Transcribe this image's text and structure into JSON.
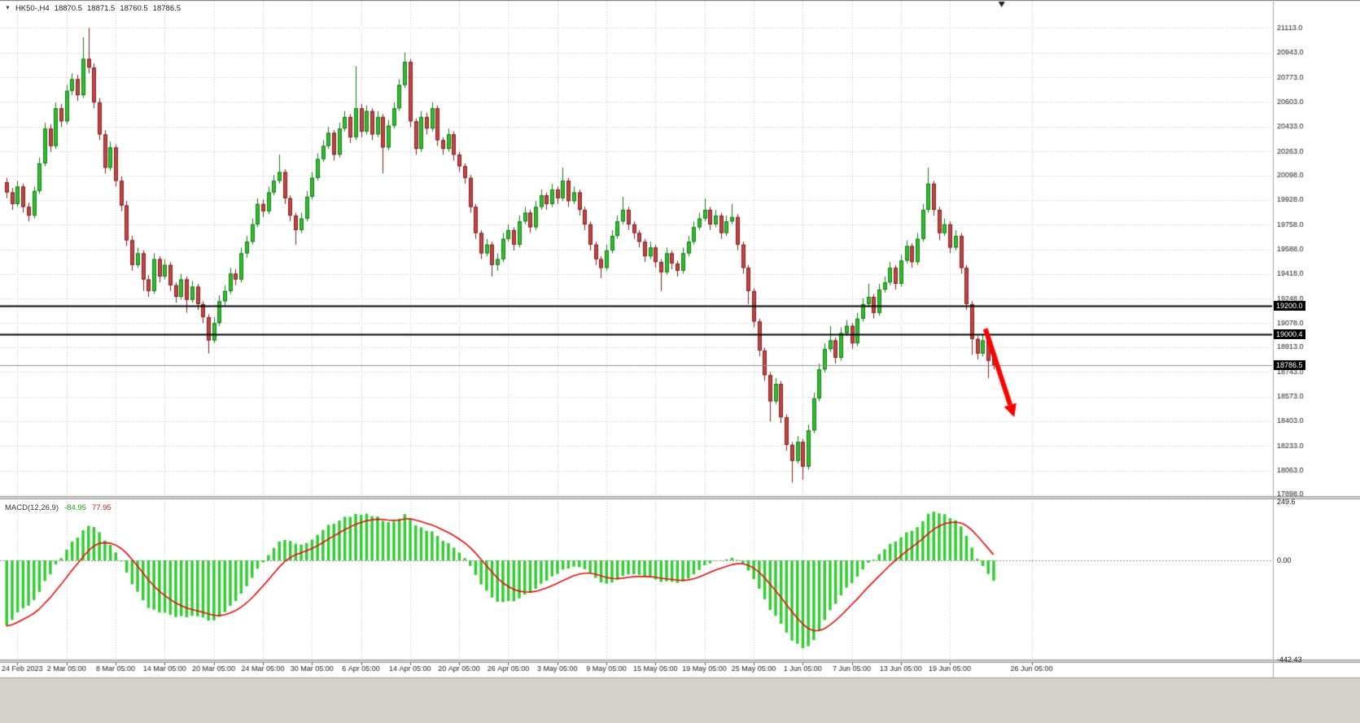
{
  "header": {
    "symbol_timeframe": "HK50-,H4",
    "open": "18870.5",
    "high": "18871.5",
    "low": "18760.5",
    "close": "18786.5"
  },
  "chart_data": {
    "type": "candlestick",
    "symbol": "HK50",
    "timeframe": "H4",
    "price_axis": {
      "ticks": [
        "21113.0",
        "20943.0",
        "20773.0",
        "20603.0",
        "20433.0",
        "20263.0",
        "20098.0",
        "19928.0",
        "19758.0",
        "19588.0",
        "19418.0",
        "19248.0",
        "19078.0",
        "18913.0",
        "18743.0",
        "18573.0",
        "18403.0",
        "18233.0",
        "18063.0",
        "17898.0"
      ]
    },
    "time_axis": {
      "labels": [
        {
          "t": "24 Feb 2023",
          "i": 2
        },
        {
          "t": "2 Mar 05:00",
          "i": 11
        },
        {
          "t": "8 Mar 05:00",
          "i": 20
        },
        {
          "t": "14 Mar 05:00",
          "i": 29
        },
        {
          "t": "20 Mar 05:00",
          "i": 38
        },
        {
          "t": "24 Mar 05:00",
          "i": 47
        },
        {
          "t": "30 Mar 05:00",
          "i": 56
        },
        {
          "t": "6 Apr 05:00",
          "i": 65
        },
        {
          "t": "14 Apr 05:00",
          "i": 74
        },
        {
          "t": "20 Apr 05:00",
          "i": 83
        },
        {
          "t": "26 Apr 05:00",
          "i": 92
        },
        {
          "t": "3 May 05:00",
          "i": 101
        },
        {
          "t": "9 May 05:00",
          "i": 110
        },
        {
          "t": "15 May 05:00",
          "i": 119
        },
        {
          "t": "19 May 05:00",
          "i": 128
        },
        {
          "t": "25 May 05:00",
          "i": 137
        },
        {
          "t": "1 Jun 05:00",
          "i": 146
        },
        {
          "t": "7 Jun 05:00",
          "i": 155
        },
        {
          "t": "13 Jun 05:00",
          "i": 164
        },
        {
          "t": "19 Jun 05:00",
          "i": 173
        },
        {
          "t": "26 Jun 05:00",
          "i": 188
        }
      ]
    },
    "levels": [
      {
        "label": "19200.0",
        "value": 19200.0,
        "type": "hline"
      },
      {
        "label": "19000.4",
        "value": 19000.4,
        "type": "hline"
      },
      {
        "label": "18786.5",
        "value": 18786.5,
        "type": "last"
      }
    ],
    "annotations": {
      "arrow": {
        "from": {
          "i": 179.5,
          "price": 19040
        },
        "to": {
          "i": 184.8,
          "price": 18430
        },
        "color": "#FF0000"
      }
    },
    "macd": {
      "label": "MACD(12,26,9)",
      "main_value": "-84.95",
      "signal_value": "77.95",
      "axis": {
        "max": "249.6",
        "zero": "0.00",
        "min": "-442.43"
      },
      "params": {
        "fast": 12,
        "slow": 26,
        "signal": 9
      }
    },
    "colors": {
      "bull": "#2FBE2F",
      "bull_edge": "#157915",
      "bear": "#C04545",
      "bear_edge": "#7E2020",
      "grid": "#c6c6c6",
      "hline": "#000000",
      "last_price_line": "#909090",
      "histogram": "#33CC33",
      "signal": "#E01010",
      "arrow": "#FF0000",
      "axis_text": "#1a1a1a"
    },
    "candles": [
      [
        20050,
        20080,
        19940,
        19980
      ],
      [
        19980,
        20010,
        19860,
        19900
      ],
      [
        19900,
        20060,
        19880,
        20020
      ],
      [
        20020,
        20040,
        19840,
        19880
      ],
      [
        19880,
        19910,
        19780,
        19820
      ],
      [
        19820,
        20020,
        19800,
        19990
      ],
      [
        19990,
        20220,
        19970,
        20180
      ],
      [
        20180,
        20460,
        20160,
        20420
      ],
      [
        20420,
        20450,
        20260,
        20300
      ],
      [
        20300,
        20600,
        20280,
        20560
      ],
      [
        20560,
        20590,
        20430,
        20470
      ],
      [
        20470,
        20720,
        20450,
        20680
      ],
      [
        20680,
        20800,
        20650,
        20760
      ],
      [
        20760,
        20790,
        20610,
        20650
      ],
      [
        20650,
        21050,
        20630,
        20900
      ],
      [
        20900,
        21113,
        20800,
        20840
      ],
      [
        20840,
        20870,
        20560,
        20600
      ],
      [
        20600,
        20630,
        20340,
        20380
      ],
      [
        20380,
        20410,
        20110,
        20150
      ],
      [
        20150,
        20330,
        20130,
        20290
      ],
      [
        20290,
        20310,
        20020,
        20060
      ],
      [
        20060,
        20090,
        19850,
        19890
      ],
      [
        19890,
        19920,
        19610,
        19650
      ],
      [
        19650,
        19680,
        19440,
        19480
      ],
      [
        19480,
        19600,
        19460,
        19560
      ],
      [
        19560,
        19580,
        19300,
        19380
      ],
      [
        19380,
        19410,
        19260,
        19300
      ],
      [
        19300,
        19560,
        19280,
        19520
      ],
      [
        19520,
        19540,
        19360,
        19400
      ],
      [
        19400,
        19520,
        19380,
        19480
      ],
      [
        19480,
        19500,
        19300,
        19340
      ],
      [
        19340,
        19360,
        19220,
        19260
      ],
      [
        19260,
        19420,
        19240,
        19380
      ],
      [
        19380,
        19400,
        19150,
        19240
      ],
      [
        19240,
        19370,
        19220,
        19330
      ],
      [
        19330,
        19350,
        19170,
        19210
      ],
      [
        19210,
        19230,
        19080,
        19120
      ],
      [
        19120,
        19140,
        18870,
        18960
      ],
      [
        18960,
        19120,
        18940,
        19080
      ],
      [
        19080,
        19270,
        19060,
        19230
      ],
      [
        19230,
        19340,
        19200,
        19300
      ],
      [
        19300,
        19460,
        19280,
        19420
      ],
      [
        19420,
        19450,
        19340,
        19380
      ],
      [
        19380,
        19600,
        19360,
        19560
      ],
      [
        19560,
        19680,
        19530,
        19640
      ],
      [
        19640,
        19800,
        19620,
        19760
      ],
      [
        19760,
        19940,
        19740,
        19900
      ],
      [
        19900,
        19930,
        19810,
        19850
      ],
      [
        19850,
        20020,
        19830,
        19980
      ],
      [
        19980,
        20100,
        19960,
        20060
      ],
      [
        20060,
        20240,
        20040,
        20120
      ],
      [
        20120,
        20140,
        19900,
        19940
      ],
      [
        19940,
        19960,
        19780,
        19820
      ],
      [
        19820,
        19840,
        19620,
        19720
      ],
      [
        19720,
        19840,
        19700,
        19800
      ],
      [
        19800,
        19990,
        19780,
        19950
      ],
      [
        19950,
        20120,
        19930,
        20080
      ],
      [
        20080,
        20250,
        20060,
        20210
      ],
      [
        20210,
        20340,
        20190,
        20300
      ],
      [
        20300,
        20430,
        20280,
        20390
      ],
      [
        20390,
        20410,
        20200,
        20240
      ],
      [
        20240,
        20460,
        20220,
        20420
      ],
      [
        20420,
        20540,
        20400,
        20500
      ],
      [
        20500,
        20520,
        20320,
        20360
      ],
      [
        20360,
        20850,
        20340,
        20560
      ],
      [
        20560,
        20590,
        20360,
        20400
      ],
      [
        20400,
        20580,
        20380,
        20540
      ],
      [
        20540,
        20560,
        20340,
        20380
      ],
      [
        20380,
        20540,
        20360,
        20500
      ],
      [
        20500,
        20520,
        20110,
        20290
      ],
      [
        20290,
        20480,
        20270,
        20440
      ],
      [
        20440,
        20600,
        20420,
        20560
      ],
      [
        20560,
        20760,
        20540,
        20720
      ],
      [
        20720,
        20943,
        20700,
        20880
      ],
      [
        20880,
        20900,
        20430,
        20470
      ],
      [
        20470,
        20490,
        20240,
        20280
      ],
      [
        20280,
        20540,
        20260,
        20500
      ],
      [
        20500,
        20530,
        20380,
        20420
      ],
      [
        20420,
        20600,
        20400,
        20560
      ],
      [
        20560,
        20580,
        20300,
        20340
      ],
      [
        20340,
        20360,
        20240,
        20280
      ],
      [
        20280,
        20420,
        20260,
        20380
      ],
      [
        20380,
        20400,
        20200,
        20240
      ],
      [
        20240,
        20260,
        20120,
        20160
      ],
      [
        20160,
        20180,
        20040,
        20080
      ],
      [
        20080,
        20100,
        19840,
        19880
      ],
      [
        19880,
        19900,
        19660,
        19700
      ],
      [
        19700,
        19720,
        19520,
        19560
      ],
      [
        19560,
        19660,
        19540,
        19620
      ],
      [
        19620,
        19640,
        19400,
        19480
      ],
      [
        19480,
        19560,
        19440,
        19520
      ],
      [
        19520,
        19700,
        19500,
        19660
      ],
      [
        19660,
        19760,
        19640,
        19720
      ],
      [
        19720,
        19740,
        19580,
        19620
      ],
      [
        19620,
        19820,
        19600,
        19780
      ],
      [
        19780,
        19880,
        19760,
        19840
      ],
      [
        19840,
        19860,
        19700,
        19740
      ],
      [
        19740,
        19920,
        19720,
        19880
      ],
      [
        19880,
        20000,
        19860,
        19960
      ],
      [
        19960,
        19980,
        19860,
        19900
      ],
      [
        19900,
        20040,
        19880,
        20000
      ],
      [
        20000,
        20020,
        19900,
        19940
      ],
      [
        19940,
        20150,
        19920,
        20060
      ],
      [
        20060,
        20080,
        19880,
        19920
      ],
      [
        19920,
        20020,
        19900,
        19980
      ],
      [
        19980,
        20000,
        19820,
        19860
      ],
      [
        19860,
        19880,
        19720,
        19760
      ],
      [
        19760,
        19780,
        19580,
        19620
      ],
      [
        19620,
        19640,
        19480,
        19520
      ],
      [
        19520,
        19540,
        19390,
        19460
      ],
      [
        19460,
        19620,
        19440,
        19580
      ],
      [
        19580,
        19720,
        19560,
        19680
      ],
      [
        19680,
        19820,
        19660,
        19780
      ],
      [
        19780,
        19950,
        19760,
        19860
      ],
      [
        19860,
        19880,
        19720,
        19760
      ],
      [
        19760,
        19780,
        19660,
        19700
      ],
      [
        19700,
        19720,
        19600,
        19640
      ],
      [
        19640,
        19660,
        19500,
        19540
      ],
      [
        19540,
        19640,
        19520,
        19600
      ],
      [
        19600,
        19620,
        19460,
        19500
      ],
      [
        19500,
        19520,
        19300,
        19430
      ],
      [
        19430,
        19600,
        19410,
        19560
      ],
      [
        19560,
        19580,
        19450,
        19490
      ],
      [
        19490,
        19510,
        19400,
        19440
      ],
      [
        19440,
        19600,
        19420,
        19560
      ],
      [
        19560,
        19680,
        19540,
        19640
      ],
      [
        19640,
        19780,
        19620,
        19740
      ],
      [
        19740,
        19840,
        19720,
        19800
      ],
      [
        19800,
        19940,
        19780,
        19860
      ],
      [
        19860,
        19880,
        19720,
        19760
      ],
      [
        19760,
        19860,
        19740,
        19820
      ],
      [
        19820,
        19840,
        19660,
        19700
      ],
      [
        19700,
        19820,
        19680,
        19780
      ],
      [
        19780,
        19900,
        19760,
        19810
      ],
      [
        19810,
        19830,
        19580,
        19620
      ],
      [
        19620,
        19640,
        19420,
        19460
      ],
      [
        19460,
        19480,
        19210,
        19300
      ],
      [
        19300,
        19320,
        19050,
        19090
      ],
      [
        19090,
        19110,
        18850,
        18890
      ],
      [
        18890,
        18910,
        18680,
        18720
      ],
      [
        18720,
        18740,
        18400,
        18540
      ],
      [
        18540,
        18700,
        18520,
        18660
      ],
      [
        18660,
        18680,
        18390,
        18430
      ],
      [
        18430,
        18450,
        18200,
        18240
      ],
      [
        18240,
        18260,
        17980,
        18130
      ],
      [
        18130,
        18300,
        18110,
        18260
      ],
      [
        18260,
        18280,
        18000,
        18090
      ],
      [
        18090,
        18380,
        18070,
        18340
      ],
      [
        18340,
        18600,
        18320,
        18560
      ],
      [
        18560,
        18800,
        18540,
        18760
      ],
      [
        18760,
        18940,
        18740,
        18900
      ],
      [
        18900,
        19060,
        18880,
        18960
      ],
      [
        18960,
        18980,
        18800,
        18840
      ],
      [
        18840,
        19050,
        18820,
        19010
      ],
      [
        19010,
        19100,
        18990,
        19060
      ],
      [
        19060,
        19080,
        18900,
        18940
      ],
      [
        18940,
        19150,
        18920,
        19110
      ],
      [
        19110,
        19250,
        19090,
        19210
      ],
      [
        19210,
        19350,
        19190,
        19260
      ],
      [
        19260,
        19280,
        19110,
        19150
      ],
      [
        19150,
        19350,
        19130,
        19310
      ],
      [
        19310,
        19400,
        19290,
        19360
      ],
      [
        19360,
        19500,
        19340,
        19460
      ],
      [
        19460,
        19480,
        19310,
        19350
      ],
      [
        19350,
        19550,
        19330,
        19510
      ],
      [
        19510,
        19650,
        19490,
        19610
      ],
      [
        19610,
        19630,
        19460,
        19500
      ],
      [
        19500,
        19700,
        19480,
        19660
      ],
      [
        19660,
        19900,
        19640,
        19860
      ],
      [
        19860,
        20150,
        19840,
        20040
      ],
      [
        20040,
        20060,
        19820,
        19860
      ],
      [
        19860,
        19880,
        19650,
        19700
      ],
      [
        19700,
        19800,
        19680,
        19760
      ],
      [
        19760,
        19780,
        19560,
        19600
      ],
      [
        19600,
        19720,
        19580,
        19680
      ],
      [
        19680,
        19700,
        19420,
        19460
      ],
      [
        19460,
        19480,
        19170,
        19210
      ],
      [
        19210,
        19230,
        18860,
        18970
      ],
      [
        18970,
        18990,
        18830,
        18870
      ],
      [
        18870,
        19000,
        18850,
        18960
      ],
      [
        18960,
        18980,
        18700,
        18820
      ],
      [
        18870.5,
        18871.5,
        18760.5,
        18786.5
      ]
    ]
  }
}
